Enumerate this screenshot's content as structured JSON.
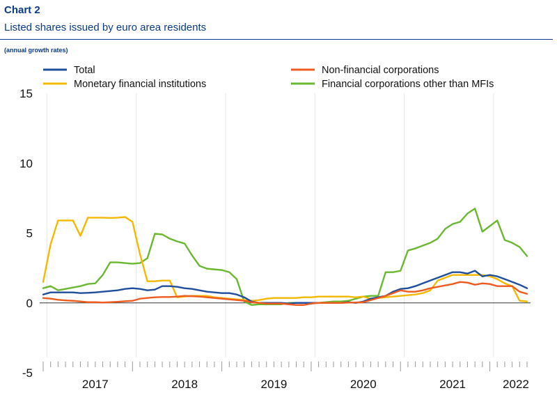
{
  "header": {
    "label": "Chart 2",
    "title": "Listed shares issued by euro area residents",
    "units": "(annual growth rates)"
  },
  "chart_data": {
    "type": "line",
    "title": "Listed shares issued by euro area residents",
    "ylabel": "",
    "xlabel": "",
    "ylim": [
      -5,
      15
    ],
    "yticks": [
      15,
      10,
      5,
      0,
      -5
    ],
    "x_start": "2016-12",
    "x_step": "month",
    "x_range": [
      "2016-12",
      "2022-06"
    ],
    "year_labels": [
      "2017",
      "2018",
      "2019",
      "2020",
      "2021",
      "2022"
    ],
    "grid": "vertical-year",
    "legend": "top",
    "series": [
      {
        "name": "Total",
        "color": "#1f4e9c",
        "values": [
          0.6,
          0.75,
          0.75,
          0.75,
          0.75,
          0.7,
          0.72,
          0.75,
          0.8,
          0.85,
          0.9,
          1.0,
          1.05,
          1.0,
          0.9,
          0.95,
          1.2,
          1.2,
          1.15,
          1.05,
          1.0,
          0.9,
          0.8,
          0.75,
          0.7,
          0.7,
          0.6,
          0.4,
          0.1,
          0.0,
          0.0,
          0.0,
          0.0,
          -0.05,
          0.0,
          0.0,
          0.0,
          0.0,
          0.0,
          0.0,
          0.0,
          0.05,
          0.0,
          0.1,
          0.3,
          0.4,
          0.5,
          0.8,
          1.0,
          1.05,
          1.2,
          1.4,
          1.6,
          1.8,
          2.0,
          2.2,
          2.2,
          2.1,
          2.3,
          1.9,
          2.0,
          1.9,
          1.7,
          1.5,
          1.3,
          1.05
        ]
      },
      {
        "name": "Monetary financial institutions",
        "color": "#f5b800",
        "values": [
          1.5,
          4.2,
          5.9,
          5.9,
          5.9,
          4.8,
          6.1,
          6.1,
          6.1,
          6.08,
          6.1,
          6.15,
          5.8,
          3.5,
          1.55,
          1.55,
          1.6,
          1.6,
          0.4,
          0.45,
          0.5,
          0.5,
          0.5,
          0.4,
          0.35,
          0.3,
          0.25,
          0.2,
          0.15,
          0.2,
          0.3,
          0.35,
          0.35,
          0.35,
          0.35,
          0.4,
          0.4,
          0.45,
          0.45,
          0.45,
          0.45,
          0.45,
          0.4,
          0.45,
          0.3,
          0.35,
          0.4,
          0.45,
          0.5,
          0.55,
          0.6,
          0.7,
          0.9,
          1.6,
          1.8,
          2.0,
          2.0,
          2.0,
          2.0,
          2.0,
          1.9,
          1.7,
          1.4,
          1.2,
          0.15,
          0.1
        ]
      },
      {
        "name": "Non-financial corporations",
        "color": "#ef5a1e",
        "values": [
          0.35,
          0.3,
          0.22,
          0.18,
          0.15,
          0.1,
          0.05,
          0.05,
          0.03,
          0.05,
          0.08,
          0.12,
          0.15,
          0.3,
          0.35,
          0.4,
          0.42,
          0.42,
          0.45,
          0.5,
          0.48,
          0.45,
          0.4,
          0.35,
          0.3,
          0.25,
          0.2,
          0.15,
          0.05,
          0.0,
          -0.05,
          -0.05,
          -0.05,
          -0.1,
          -0.15,
          -0.15,
          -0.05,
          0.0,
          0.0,
          0.0,
          0.0,
          0.02,
          0.03,
          0.05,
          0.2,
          0.35,
          0.5,
          0.7,
          0.9,
          0.8,
          0.8,
          0.9,
          1.05,
          1.15,
          1.25,
          1.35,
          1.5,
          1.45,
          1.3,
          1.4,
          1.35,
          1.2,
          1.2,
          1.2,
          0.8,
          0.65
        ]
      },
      {
        "name": "Financial corporations other than MFIs",
        "color": "#6ab82f",
        "values": [
          1.05,
          1.2,
          0.9,
          1.0,
          1.1,
          1.2,
          1.35,
          1.4,
          2.0,
          2.9,
          2.9,
          2.85,
          2.8,
          2.85,
          3.2,
          4.95,
          4.9,
          4.6,
          4.4,
          4.25,
          3.4,
          2.65,
          2.45,
          2.4,
          2.35,
          2.2,
          1.7,
          0.1,
          -0.15,
          -0.1,
          -0.1,
          -0.1,
          -0.1,
          0.0,
          0.0,
          0.0,
          0.0,
          0.0,
          0.05,
          0.1,
          0.1,
          0.15,
          0.3,
          0.45,
          0.5,
          0.5,
          2.2,
          2.2,
          2.3,
          3.75,
          3.9,
          4.1,
          4.3,
          4.6,
          5.3,
          5.65,
          5.8,
          6.4,
          6.75,
          5.1,
          5.5,
          5.9,
          4.5,
          4.3,
          4.0,
          3.35
        ]
      }
    ]
  }
}
